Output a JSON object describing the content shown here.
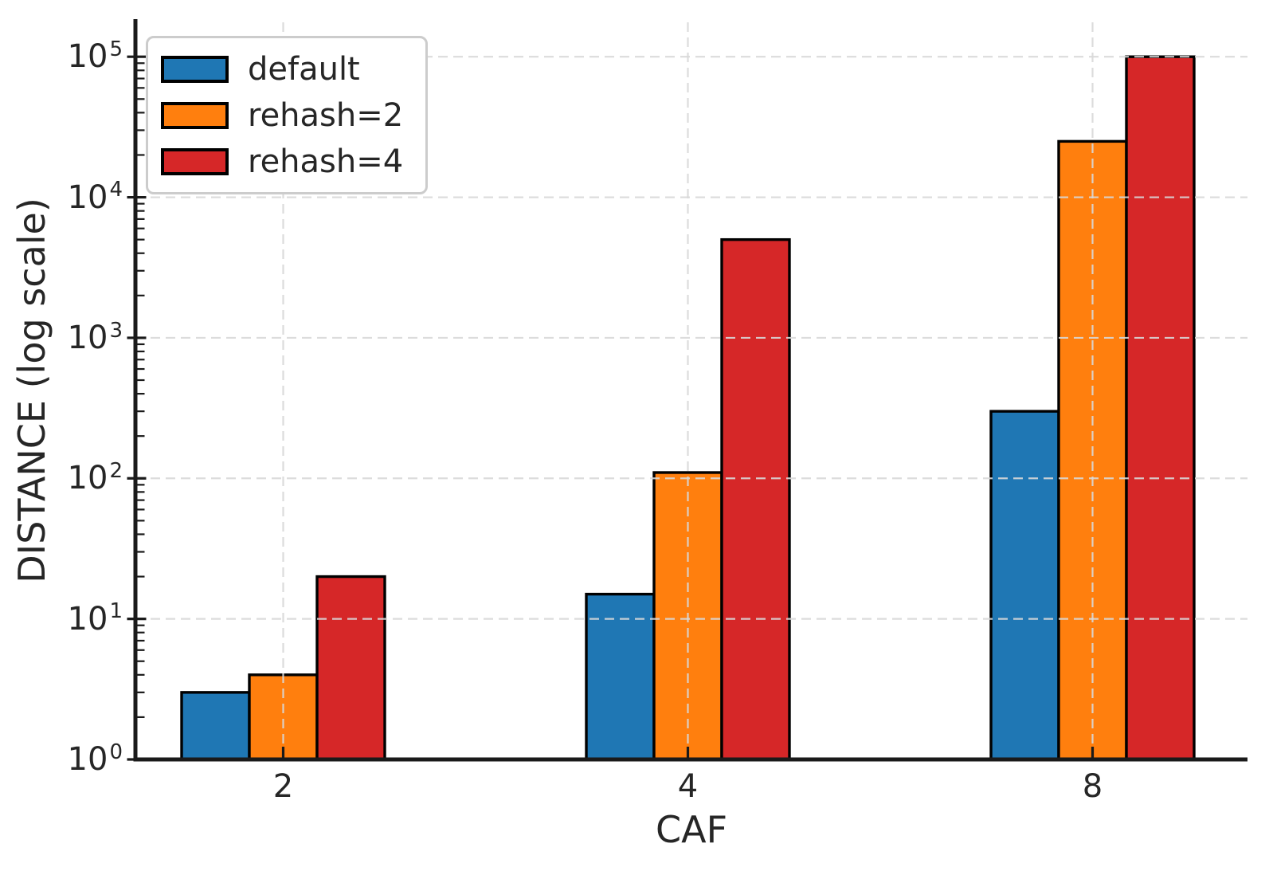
{
  "chart_data": {
    "type": "bar",
    "title": "",
    "xlabel": "CAF",
    "ylabel": "DISTANCE (log scale)",
    "yscale": "log",
    "ylim": [
      1,
      180000
    ],
    "categories": [
      "2",
      "4",
      "8"
    ],
    "series": [
      {
        "name": "default",
        "color": "#1f77b4",
        "values": [
          3,
          15,
          300
        ]
      },
      {
        "name": "rehash=2",
        "color": "#ff7f0e",
        "values": [
          4,
          110,
          25000
        ]
      },
      {
        "name": "rehash=4",
        "color": "#d62728",
        "values": [
          20,
          5000,
          100000
        ]
      }
    ],
    "ytick_exponents": [
      0,
      1,
      2,
      3,
      4,
      5
    ],
    "grid": {
      "visible": true,
      "style": "dashed",
      "drawn_over_bars": true
    },
    "legend": {
      "position": "upper-left"
    },
    "colors": {
      "bar_edge": "#000000",
      "grid": "#d8d8d8",
      "axis": "#1a1a1a",
      "text": "#262626",
      "legend_border": "#cccccc"
    }
  }
}
